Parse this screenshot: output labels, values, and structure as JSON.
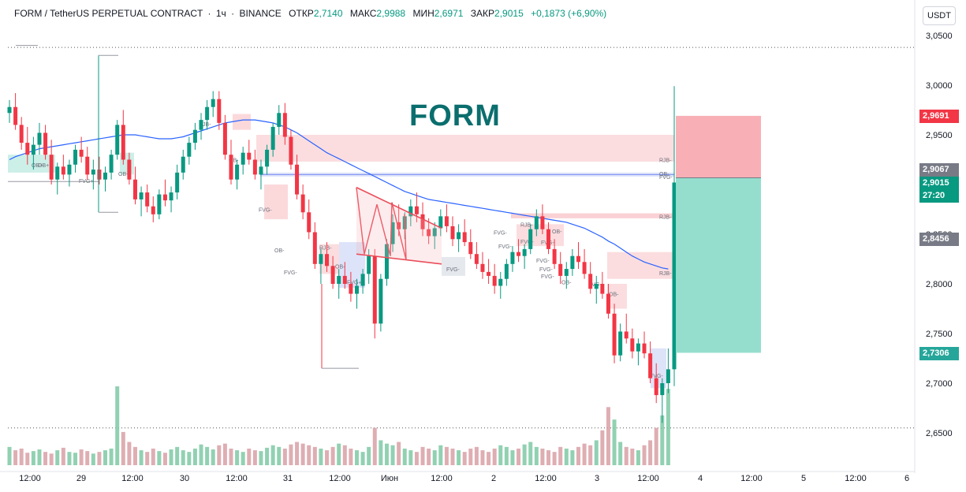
{
  "header": {
    "symbol": "FORM / TetherUS PERPETUAL CONTRACT",
    "sep1": "·",
    "timeframe": "1ч",
    "sep2": "·",
    "exchange": "BINANCE",
    "open_label": "ОТКР",
    "open_value": "2,7140",
    "high_label": "МАКС",
    "high_value": "2,9988",
    "low_label": "МИН",
    "low_value": "2,6971",
    "close_label": "ЗАКР",
    "close_value": "2,9015",
    "change_value": "+0,1873 (+6,90%)"
  },
  "currency_button": "USDT",
  "watermark": "FORM",
  "colors": {
    "up": "#089981",
    "down": "#f23645",
    "ma": "#2962ff",
    "zone_red": "#f7b3b8",
    "zone_green": "#8fdccb",
    "zone_blue": "#d4dcf7",
    "axis_text": "#131722",
    "wedge": "#e8404e"
  },
  "price_tags": {
    "stop": {
      "text": "2,9691",
      "color": "#f23645"
    },
    "level1": {
      "text": "2,9067",
      "color": "#787b86"
    },
    "last": {
      "text": "2,9015",
      "color": "#089981"
    },
    "countdown": {
      "text": "27:20",
      "color": "#089981"
    },
    "level2": {
      "text": "2,8456",
      "color": "#787b86"
    },
    "target": {
      "text": "2,7306",
      "color": "#26a69a"
    }
  },
  "chart_data": {
    "type": "candlestick",
    "symbol": "FORM/USDT",
    "interval": "1h",
    "ylim": [
      2.625,
      3.06
    ],
    "y_ticks": [
      "3,0500",
      "3,0000",
      "2,9500",
      "2,9000",
      "2,8500",
      "2,8000",
      "2,7500",
      "2,7000",
      "2,6500"
    ],
    "y_tick_values": [
      3.05,
      3.0,
      2.95,
      2.9,
      2.85,
      2.8,
      2.75,
      2.7,
      2.65
    ],
    "x_ticks": [
      "12:00",
      "29",
      "12:00",
      "30",
      "12:00",
      "31",
      "12:00",
      "Июн",
      "12:00",
      "2",
      "12:00",
      "3",
      "12:00",
      "4",
      "12:00",
      "5",
      "12:00",
      "6"
    ],
    "ohlc": [
      [
        2.972,
        2.985,
        2.962,
        2.978
      ],
      [
        2.978,
        2.992,
        2.955,
        2.96
      ],
      [
        2.96,
        2.968,
        2.935,
        2.942
      ],
      [
        2.942,
        2.958,
        2.92,
        2.93
      ],
      [
        2.93,
        2.948,
        2.915,
        2.94
      ],
      [
        2.94,
        2.962,
        2.93,
        2.952
      ],
      [
        2.952,
        2.96,
        2.925,
        2.93
      ],
      [
        2.93,
        2.945,
        2.9,
        2.905
      ],
      [
        2.905,
        2.922,
        2.89,
        2.918
      ],
      [
        2.918,
        2.93,
        2.905,
        2.91
      ],
      [
        2.91,
        2.925,
        2.898,
        2.92
      ],
      [
        2.92,
        2.94,
        2.912,
        2.935
      ],
      [
        2.935,
        2.948,
        2.922,
        2.928
      ],
      [
        2.928,
        2.938,
        2.905,
        2.91
      ],
      [
        2.91,
        2.925,
        2.895,
        2.915
      ],
      [
        2.915,
        2.928,
        2.9,
        2.905
      ],
      [
        2.905,
        2.918,
        2.893,
        2.912
      ],
      [
        2.912,
        2.935,
        2.905,
        2.93
      ],
      [
        2.93,
        2.965,
        2.925,
        2.96
      ],
      [
        2.96,
        2.975,
        2.92,
        2.925
      ],
      [
        2.925,
        2.932,
        2.9,
        2.905
      ],
      [
        2.905,
        2.918,
        2.88,
        2.885
      ],
      [
        2.885,
        2.898,
        2.868,
        2.892
      ],
      [
        2.892,
        2.9,
        2.872,
        2.878
      ],
      [
        2.878,
        2.888,
        2.862,
        2.87
      ],
      [
        2.87,
        2.895,
        2.865,
        2.89
      ],
      [
        2.89,
        2.905,
        2.878,
        2.884
      ],
      [
        2.884,
        2.898,
        2.872,
        2.892
      ],
      [
        2.892,
        2.92,
        2.885,
        2.912
      ],
      [
        2.912,
        2.935,
        2.905,
        2.928
      ],
      [
        2.928,
        2.948,
        2.92,
        2.942
      ],
      [
        2.942,
        2.962,
        2.935,
        2.955
      ],
      [
        2.955,
        2.972,
        2.945,
        2.965
      ],
      [
        2.965,
        2.985,
        2.955,
        2.978
      ],
      [
        2.978,
        2.994,
        2.968,
        2.986
      ],
      [
        2.986,
        2.994,
        2.955,
        2.962
      ],
      [
        2.962,
        2.97,
        2.925,
        2.93
      ],
      [
        2.93,
        2.945,
        2.9,
        2.905
      ],
      [
        2.905,
        2.925,
        2.895,
        2.92
      ],
      [
        2.92,
        2.938,
        2.91,
        2.932
      ],
      [
        2.932,
        2.945,
        2.92,
        2.925
      ],
      [
        2.925,
        2.935,
        2.905,
        2.91
      ],
      [
        2.91,
        2.925,
        2.895,
        2.918
      ],
      [
        2.918,
        2.94,
        2.91,
        2.935
      ],
      [
        2.935,
        2.962,
        2.928,
        2.958
      ],
      [
        2.958,
        2.98,
        2.95,
        2.972
      ],
      [
        2.972,
        2.982,
        2.94,
        2.948
      ],
      [
        2.948,
        2.955,
        2.915,
        2.92
      ],
      [
        2.92,
        2.93,
        2.885,
        2.89
      ],
      [
        2.89,
        2.9,
        2.865,
        2.872
      ],
      [
        2.872,
        2.885,
        2.845,
        2.852
      ],
      [
        2.852,
        2.862,
        2.815,
        2.82
      ],
      [
        2.82,
        2.835,
        2.8,
        2.83
      ],
      [
        2.83,
        2.842,
        2.812,
        2.818
      ],
      [
        2.818,
        2.828,
        2.795,
        2.8
      ],
      [
        2.8,
        2.815,
        2.785,
        2.808
      ],
      [
        2.808,
        2.822,
        2.795,
        2.8
      ],
      [
        2.8,
        2.812,
        2.782,
        2.79
      ],
      [
        2.79,
        2.805,
        2.775,
        2.798
      ],
      [
        2.798,
        2.815,
        2.79,
        2.81
      ],
      [
        2.81,
        2.835,
        2.8,
        2.828
      ],
      [
        2.828,
        2.835,
        2.745,
        2.76
      ],
      [
        2.76,
        2.81,
        2.752,
        2.805
      ],
      [
        2.805,
        2.845,
        2.798,
        2.84
      ],
      [
        2.84,
        2.87,
        2.832,
        2.862
      ],
      [
        2.862,
        2.88,
        2.848,
        2.855
      ],
      [
        2.855,
        2.872,
        2.845,
        2.868
      ],
      [
        2.868,
        2.885,
        2.858,
        2.878
      ],
      [
        2.878,
        2.892,
        2.862,
        2.87
      ],
      [
        2.87,
        2.882,
        2.848,
        2.855
      ],
      [
        2.855,
        2.866,
        2.84,
        2.848
      ],
      [
        2.848,
        2.862,
        2.835,
        2.856
      ],
      [
        2.856,
        2.875,
        2.848,
        2.868
      ],
      [
        2.868,
        2.88,
        2.852,
        2.858
      ],
      [
        2.858,
        2.868,
        2.838,
        2.845
      ],
      [
        2.845,
        2.86,
        2.832,
        2.852
      ],
      [
        2.852,
        2.865,
        2.838,
        2.842
      ],
      [
        2.842,
        2.855,
        2.825,
        2.83
      ],
      [
        2.83,
        2.842,
        2.815,
        2.82
      ],
      [
        2.82,
        2.832,
        2.805,
        2.812
      ],
      [
        2.812,
        2.825,
        2.8,
        2.808
      ],
      [
        2.808,
        2.82,
        2.79,
        2.798
      ],
      [
        2.798,
        2.812,
        2.785,
        2.805
      ],
      [
        2.805,
        2.825,
        2.798,
        2.82
      ],
      [
        2.82,
        2.838,
        2.812,
        2.832
      ],
      [
        2.832,
        2.845,
        2.822,
        2.828
      ],
      [
        2.828,
        2.84,
        2.815,
        2.835
      ],
      [
        2.835,
        2.86,
        2.83,
        2.855
      ],
      [
        2.855,
        2.875,
        2.848,
        2.868
      ],
      [
        2.868,
        2.88,
        2.85,
        2.855
      ],
      [
        2.855,
        2.862,
        2.83,
        2.835
      ],
      [
        2.835,
        2.845,
        2.815,
        2.82
      ],
      [
        2.82,
        2.832,
        2.8,
        2.808
      ],
      [
        2.808,
        2.822,
        2.795,
        2.815
      ],
      [
        2.815,
        2.835,
        2.808,
        2.828
      ],
      [
        2.828,
        2.842,
        2.815,
        2.822
      ],
      [
        2.822,
        2.835,
        2.805,
        2.81
      ],
      [
        2.81,
        2.822,
        2.79,
        2.795
      ],
      [
        2.795,
        2.808,
        2.78,
        2.8
      ],
      [
        2.8,
        2.812,
        2.785,
        2.79
      ],
      [
        2.79,
        2.8,
        2.765,
        2.77
      ],
      [
        2.77,
        2.78,
        2.72,
        2.728
      ],
      [
        2.728,
        2.76,
        2.722,
        2.752
      ],
      [
        2.752,
        2.77,
        2.74,
        2.745
      ],
      [
        2.745,
        2.755,
        2.725,
        2.732
      ],
      [
        2.732,
        2.745,
        2.718,
        2.74
      ],
      [
        2.74,
        2.752,
        2.725,
        2.73
      ],
      [
        2.73,
        2.742,
        2.7,
        2.705
      ],
      [
        2.705,
        2.72,
        2.68,
        2.688
      ],
      [
        2.688,
        2.705,
        2.66,
        2.7
      ],
      [
        2.7,
        2.735,
        2.69,
        2.714
      ],
      [
        2.714,
        2.999,
        2.697,
        2.902
      ]
    ],
    "volume": [
      22,
      18,
      20,
      15,
      17,
      19,
      16,
      14,
      18,
      21,
      16,
      15,
      19,
      17,
      14,
      16,
      18,
      20,
      95,
      40,
      28,
      22,
      18,
      16,
      20,
      17,
      15,
      19,
      22,
      18,
      16,
      20,
      25,
      22,
      19,
      24,
      26,
      20,
      18,
      16,
      20,
      18,
      17,
      21,
      24,
      22,
      20,
      25,
      28,
      26,
      24,
      22,
      20,
      18,
      22,
      26,
      24,
      20,
      18,
      16,
      22,
      45,
      30,
      26,
      24,
      28,
      20,
      18,
      16,
      22,
      20,
      18,
      24,
      22,
      20,
      18,
      16,
      20,
      22,
      18,
      16,
      20,
      24,
      22,
      18,
      20,
      25,
      28,
      22,
      20,
      18,
      16,
      22,
      20,
      18,
      22,
      26,
      24,
      30,
      42,
      70,
      55,
      28,
      22,
      20,
      18,
      24,
      30,
      45,
      60,
      92
    ],
    "volume_up": [
      1,
      0,
      0,
      0,
      1,
      1,
      0,
      0,
      1,
      0,
      1,
      1,
      0,
      0,
      1,
      0,
      1,
      1,
      1,
      0,
      0,
      0,
      1,
      0,
      0,
      1,
      0,
      1,
      1,
      1,
      1,
      1,
      1,
      1,
      1,
      0,
      0,
      0,
      1,
      1,
      0,
      0,
      1,
      1,
      1,
      1,
      0,
      0,
      0,
      0,
      0,
      0,
      1,
      0,
      0,
      1,
      0,
      0,
      1,
      1,
      1,
      0,
      1,
      1,
      1,
      0,
      1,
      1,
      0,
      0,
      0,
      1,
      1,
      0,
      0,
      1,
      0,
      0,
      0,
      0,
      0,
      0,
      1,
      1,
      1,
      0,
      1,
      1,
      1,
      0,
      0,
      0,
      0,
      1,
      1,
      0,
      0,
      0,
      1,
      0,
      0,
      1,
      1,
      0,
      0,
      1,
      0,
      0,
      0,
      1,
      1
    ],
    "ma": [
      2.925,
      2.928,
      2.93,
      2.932,
      2.934,
      2.936,
      2.937,
      2.938,
      2.939,
      2.94,
      2.941,
      2.942,
      2.943,
      2.944,
      2.945,
      2.946,
      2.947,
      2.948,
      2.949,
      2.95,
      2.95,
      2.95,
      2.949,
      2.948,
      2.947,
      2.946,
      2.946,
      2.946,
      2.947,
      2.948,
      2.95,
      2.952,
      2.954,
      2.956,
      2.958,
      2.96,
      2.962,
      2.963,
      2.964,
      2.965,
      2.965,
      2.965,
      2.964,
      2.963,
      2.962,
      2.96,
      2.958,
      2.955,
      2.952,
      2.948,
      2.944,
      2.94,
      2.936,
      2.932,
      2.929,
      2.926,
      2.923,
      2.92,
      2.917,
      2.914,
      2.911,
      2.908,
      2.905,
      2.902,
      2.899,
      2.896,
      2.893,
      2.891,
      2.889,
      2.887,
      2.885,
      2.884,
      2.883,
      2.882,
      2.881,
      2.88,
      2.879,
      2.878,
      2.877,
      2.876,
      2.875,
      2.874,
      2.873,
      2.872,
      2.871,
      2.87,
      2.869,
      2.868,
      2.867,
      2.866,
      2.865,
      2.864,
      2.863,
      2.862,
      2.86,
      2.858,
      2.856,
      2.853,
      2.85,
      2.847,
      2.843,
      2.84,
      2.836,
      2.832,
      2.828,
      2.825,
      2.822,
      2.82,
      2.818,
      2.816,
      2.815
    ],
    "zone_labels": [
      "OB+",
      "OB+",
      "OB-",
      "FVG+",
      "RJB-",
      "OB-",
      "FVG-",
      "OB-",
      "FVG-",
      "RJB-",
      "OB-",
      "FVG+",
      "FVG-",
      "RJB-",
      "OB-",
      "FVG-",
      "FVG-",
      "FVG-",
      "OB-",
      "FVG-",
      "FVG-",
      "FVG-",
      "FVG-",
      "FVG-",
      "RJB-",
      "OB-",
      "FVG-",
      "RJB-",
      "OB-",
      "FVG-",
      "RJB-"
    ],
    "position": {
      "entry": 2.9067,
      "stop": 2.9691,
      "target": 2.7306,
      "last": 2.9015
    }
  }
}
